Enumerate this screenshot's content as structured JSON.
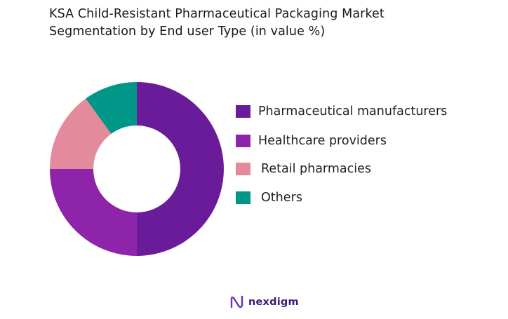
{
  "title_lines": [
    "KSA Child-Resistant Pharmaceutical Packaging  Market",
    "Segmentation by End user Type (in value %)"
  ],
  "brand": {
    "name": "nexdigm",
    "icon": "nexdigm-logo-icon"
  },
  "chart_data": {
    "type": "pie",
    "variant": "donut",
    "title": "KSA Child-Resistant Pharmaceutical Packaging  Market Segmentation by End user Type (in value %)",
    "categories": [
      "Pharmaceutical manufacturers",
      "Healthcare providers",
      "Retail pharmacies",
      "Others"
    ],
    "values": [
      50,
      25,
      15,
      10
    ],
    "colors": [
      "#6a1b9a",
      "#8e24aa",
      "#e38a9d",
      "#009688"
    ],
    "legend_position": "right"
  }
}
